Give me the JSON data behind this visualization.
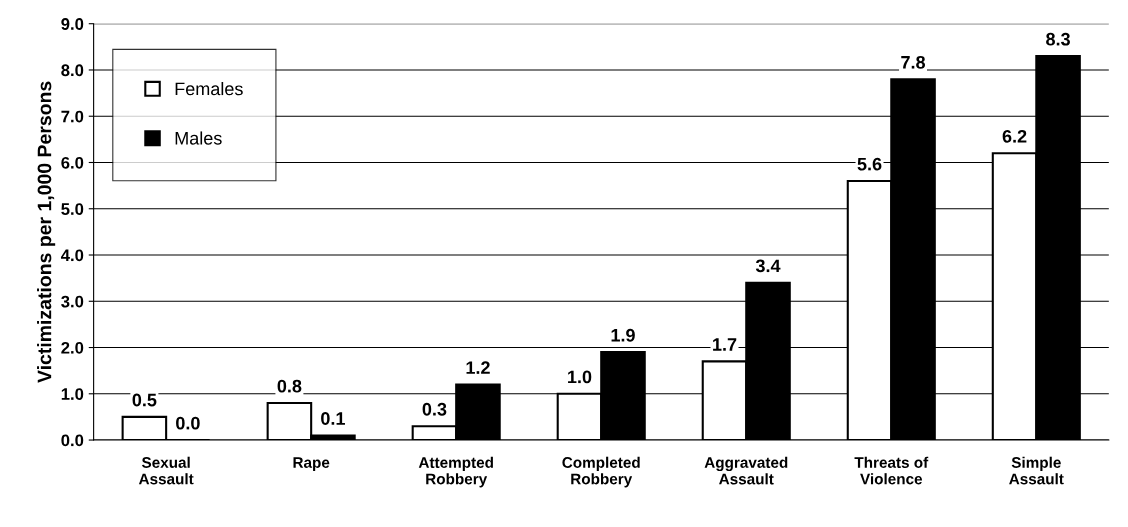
{
  "chart_data": {
    "type": "bar",
    "ylabel": "Victimizations per 1,000 Persons",
    "categories": [
      "Sexual\nAssault",
      "Rape",
      "Attempted\nRobbery",
      "Completed\nRobbery",
      "Aggravated\nAssault",
      "Threats of\nViolence",
      "Simple\nAssault"
    ],
    "series": [
      {
        "name": "Females",
        "color": "#ffffff",
        "values": [
          0.5,
          0.8,
          0.3,
          1.0,
          1.7,
          5.6,
          6.2
        ],
        "value_labels": [
          "0.5",
          "0.8",
          "0.3",
          "1.0",
          "1.7",
          "5.6",
          "6.2"
        ]
      },
      {
        "name": "Males",
        "color": "#000000",
        "values": [
          0.0,
          0.1,
          1.2,
          1.9,
          3.4,
          7.8,
          8.3
        ],
        "value_labels": [
          "0.0",
          "0.1",
          "1.2",
          "1.9",
          "3.4",
          "7.8",
          "8.3"
        ]
      }
    ],
    "ylim": [
      0,
      9
    ],
    "yticks": [
      {
        "value": 0,
        "label": "0.0"
      },
      {
        "value": 1,
        "label": "1.0"
      },
      {
        "value": 2,
        "label": "2.0"
      },
      {
        "value": 3,
        "label": "3.0"
      },
      {
        "value": 4,
        "label": "4.0"
      },
      {
        "value": 5,
        "label": "5.0"
      },
      {
        "value": 6,
        "label": "6.0"
      },
      {
        "value": 7,
        "label": "7.0"
      },
      {
        "value": 8,
        "label": "8.0"
      },
      {
        "value": 9,
        "label": "9.0"
      }
    ],
    "grid": "y",
    "legend": "top left"
  }
}
